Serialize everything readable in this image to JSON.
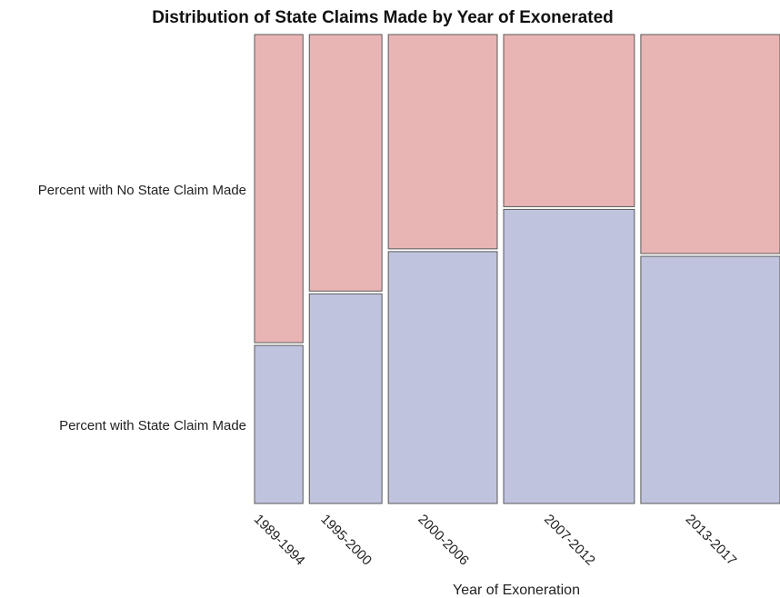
{
  "chart_data": {
    "type": "mosaic",
    "title": "Distribution of State Claims Made by Year of Exonerated",
    "xlabel": "Year of Exoneration",
    "categories": [
      "1989-1994",
      "1995-2000",
      "2000-2006",
      "2007-2012",
      "2013-2017"
    ],
    "category_share": [
      0.104,
      0.156,
      0.234,
      0.281,
      0.299
    ],
    "series": [
      {
        "name": "Percent with State Claim Made",
        "values": [
          34,
          45,
          54,
          63,
          53
        ],
        "color": "#bfc3dd"
      },
      {
        "name": "Percent with No State Claim Made",
        "values": [
          66,
          55,
          46,
          37,
          47
        ],
        "color": "#e8b4b4"
      }
    ],
    "ylim": [
      0,
      100
    ],
    "grid": false,
    "legend": "none"
  }
}
